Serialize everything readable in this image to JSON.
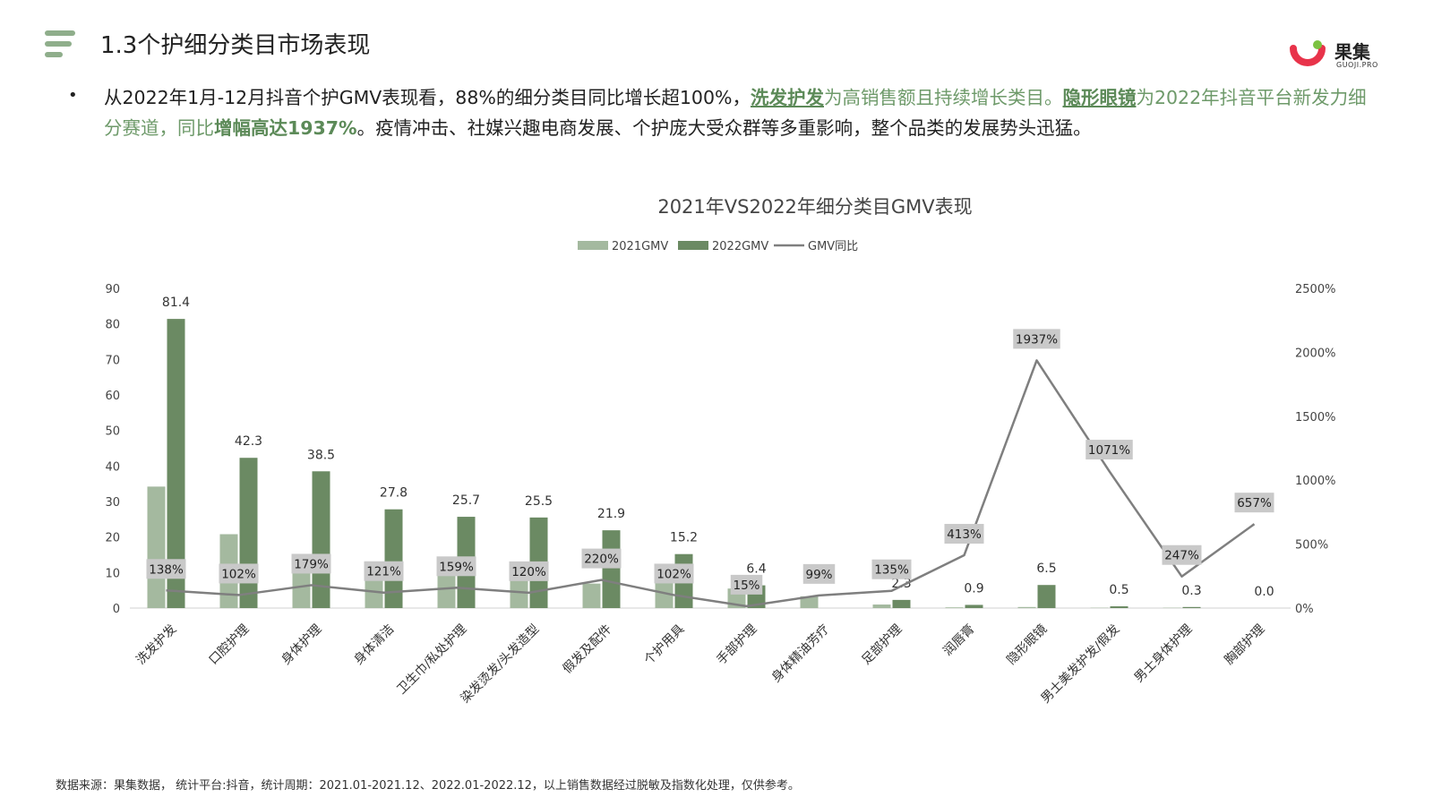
{
  "header": {
    "title": "1.3个护细分类目市场表现"
  },
  "logo": {
    "name": "果集",
    "sub": "GUOJI.PRO"
  },
  "summary": {
    "bullet": "•",
    "parts": [
      "从2022年1月-12月抖音个护GMV表现看，88%的细分类目同比增长超100%，",
      "洗发护发",
      "为高销售额且持续增长类目。",
      "隐形眼镜",
      "为2022年抖音平台新发力细分赛道，同比",
      "增幅高达1937%",
      "。疫情冲击、社媒兴趣电商发展、个护庞大受众群等多重影响，整个品类的发展势头迅猛。"
    ]
  },
  "footer": {
    "source": "数据来源：果集数据， 统计平台:抖音，统计周期：2021.01-2021.12、2022.01-2022.12，以上销售数据经过脱敏及指数化处理，仅供参考。"
  },
  "colors": {
    "bar2021": "#a4b99f",
    "bar2022": "#6b8a63",
    "line": "#7f7f7f",
    "label_box": "#c9c9c9",
    "accent_green": "#5c8a58"
  },
  "chart_data": {
    "type": "bar",
    "title": "2021年VS2022年细分类目GMV表现",
    "legend": [
      "2021GMV",
      "2022GMV",
      "GMV同比"
    ],
    "legend_position": "top-center",
    "categories": [
      "洗发护发",
      "口腔护理",
      "身体护理",
      "身体清洁",
      "卫生巾/私处护理",
      "染发烫发/头发造型",
      "假发及配件",
      "个护用具",
      "手部护理",
      "身体精油芳疗",
      "足部护理",
      "润唇膏",
      "隐形眼镜",
      "男士美发护发/假发",
      "男士身体护理",
      "胸部护理"
    ],
    "series": [
      {
        "name": "2021GMV",
        "axis": "left",
        "values": [
          34.2,
          20.8,
          13.8,
          12.6,
          10,
          11.6,
          6.9,
          7.5,
          5.5,
          3.3,
          1,
          0.2,
          0.3,
          0.1,
          0.1,
          0
        ]
      },
      {
        "name": "2022GMV",
        "axis": "left",
        "values": [
          81.4,
          42.3,
          38.5,
          27.8,
          25.7,
          25.5,
          21.9,
          15.2,
          6.4,
          null,
          2.3,
          0.9,
          6.5,
          0.5,
          0.3,
          0.0
        ]
      },
      {
        "name": "GMV同比",
        "axis": "right",
        "type": "line",
        "values": [
          138,
          102,
          179,
          121,
          159,
          120,
          220,
          102,
          15,
          99,
          135,
          413,
          1937,
          1071,
          247,
          657
        ]
      }
    ],
    "bar_labels": [
      "81.4",
      "42.3",
      "38.5",
      "27.8",
      "25.7",
      "25.5",
      "21.9",
      "15.2",
      "6.4",
      "",
      "2.3",
      "0.9",
      "6.5",
      "0.5",
      "0.3",
      "0.0"
    ],
    "line_labels": [
      "138%",
      "102%",
      "179%",
      "121%",
      "159%",
      "120%",
      "220%",
      "102%",
      "15%",
      "99%",
      "135%",
      "413%",
      "1937%",
      "1071%",
      "247%",
      "657%"
    ],
    "ylim_left": [
      0,
      90
    ],
    "yticks_left": [
      "0",
      "10",
      "20",
      "30",
      "40",
      "50",
      "60",
      "70",
      "80",
      "90"
    ],
    "ylim_right": [
      0,
      2500
    ],
    "yticks_right": [
      "0%",
      "500%",
      "1000%",
      "1500%",
      "2000%",
      "2500%"
    ],
    "grid": false
  }
}
